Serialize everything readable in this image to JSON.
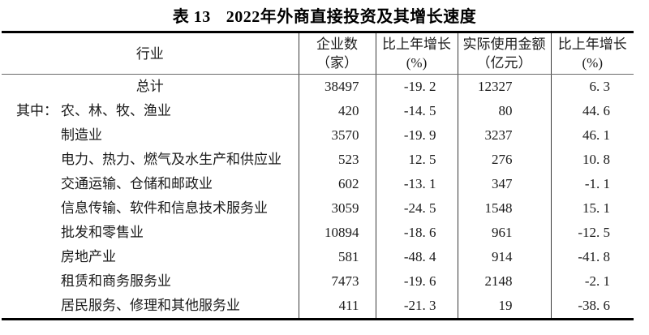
{
  "page": {
    "background": "#ffffff",
    "text_color": "#1a1a1a",
    "rule_color": "#000000",
    "separator_color": "#3a3a3a"
  },
  "title": {
    "table_number": "表 13",
    "text": "2022年外商直接投资及其增长速度"
  },
  "table": {
    "header": [
      {
        "line1": "行业",
        "line2": ""
      },
      {
        "line1": "企业数",
        "line2": "（家）"
      },
      {
        "line1": "比上年增长",
        "line2": "(%)"
      },
      {
        "line1": "实际使用金额",
        "line2": "（亿元）"
      },
      {
        "line1": "比上年增长",
        "line2": "(%)"
      }
    ],
    "value_cell_names": [
      "enterprises-count-cell",
      "enterprises-growth-cell",
      "utilized-amount-cell",
      "amount-growth-cell"
    ],
    "rows": [
      {
        "industry": "总计",
        "align": "center",
        "prefix": "",
        "values": [
          "38497",
          "-19.2",
          "12327",
          "6.3"
        ]
      },
      {
        "industry": "农、林、牧、渔业",
        "align": "left",
        "prefix": "其中：",
        "values": [
          "420",
          "-14.5",
          "80",
          "44.6"
        ]
      },
      {
        "industry": "制造业",
        "align": "left",
        "prefix": "",
        "values": [
          "3570",
          "-19.9",
          "3237",
          "46.1"
        ]
      },
      {
        "industry": "电力、热力、燃气及水生产和供应业",
        "align": "left",
        "prefix": "",
        "values": [
          "523",
          "12.5",
          "276",
          "10.8"
        ]
      },
      {
        "industry": "交通运输、仓储和邮政业",
        "align": "left",
        "prefix": "",
        "values": [
          "602",
          "-13.1",
          "347",
          "-1.1"
        ]
      },
      {
        "industry": "信息传输、软件和信息技术服务业",
        "align": "left",
        "prefix": "",
        "values": [
          "3059",
          "-24.5",
          "1548",
          "15.1"
        ]
      },
      {
        "industry": "批发和零售业",
        "align": "left",
        "prefix": "",
        "values": [
          "10894",
          "-18.6",
          "961",
          "-12.5"
        ]
      },
      {
        "industry": "房地产业",
        "align": "left",
        "prefix": "",
        "values": [
          "581",
          "-48.4",
          "914",
          "-41.8"
        ]
      },
      {
        "industry": "租赁和商务服务业",
        "align": "left",
        "prefix": "",
        "values": [
          "7473",
          "-19.6",
          "2148",
          "-2.1"
        ]
      },
      {
        "industry": "居民服务、修理和其他服务业",
        "align": "left",
        "prefix": "",
        "values": [
          "411",
          "-21.3",
          "19",
          "-38.6"
        ]
      }
    ]
  }
}
